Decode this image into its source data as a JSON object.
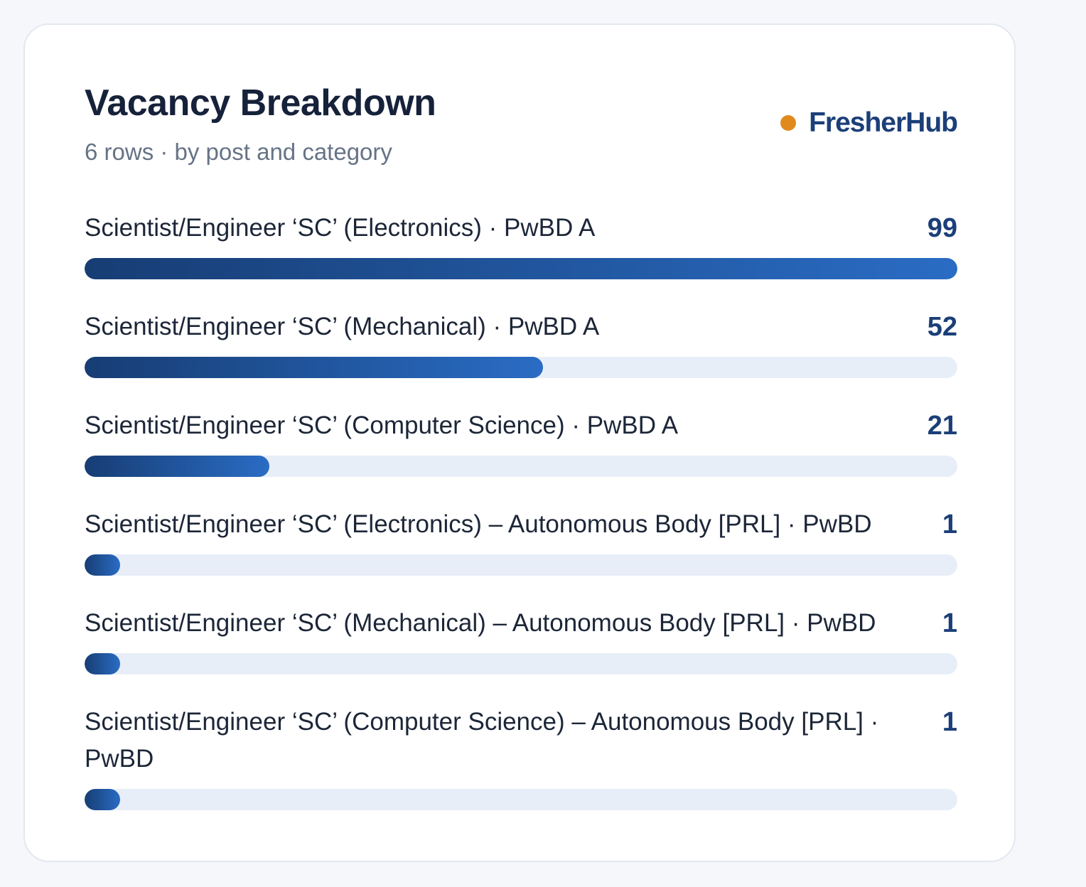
{
  "card": {
    "title": "Vacancy Breakdown",
    "subtitle": "6 rows · by post and category",
    "brand": "FresherHub"
  },
  "colors": {
    "brand_dot": "#e08a1e",
    "brand_text": "#1b3f78",
    "bar_start": "#173d74",
    "bar_end": "#2a6cc4",
    "track": "#e8eef8"
  },
  "chart_data": {
    "type": "bar",
    "orientation": "horizontal",
    "title": "Vacancy Breakdown",
    "subtitle": "6 rows · by post and category",
    "categories": [
      "Scientist/Engineer ‘SC’ (Electronics) · PwBD A",
      "Scientist/Engineer ‘SC’ (Mechanical) · PwBD A",
      "Scientist/Engineer ‘SC’ (Computer Science) · PwBD A",
      "Scientist/Engineer ‘SC’ (Electronics) – Autonomous Body [PRL] · PwBD",
      "Scientist/Engineer ‘SC’ (Mechanical) – Autonomous Body [PRL] · PwBD",
      "Scientist/Engineer ‘SC’ (Computer Science) – Autonomous Body [PRL] · PwBD"
    ],
    "values": [
      99,
      52,
      21,
      1,
      1,
      1
    ],
    "xlim": [
      0,
      99
    ],
    "grid": false,
    "legend": "none"
  }
}
